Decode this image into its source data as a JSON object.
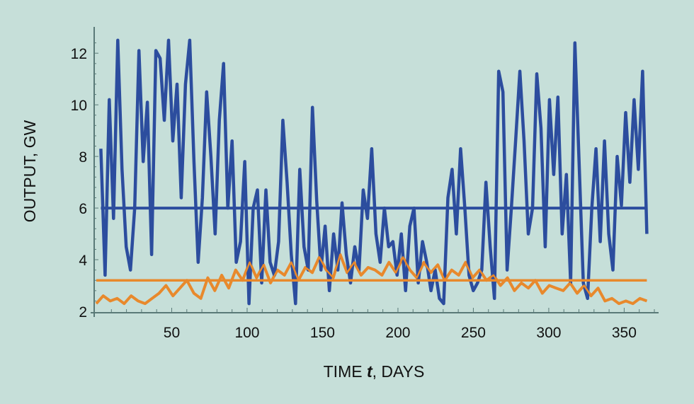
{
  "chart_data": {
    "type": "line",
    "title": "",
    "xlabel_parts": [
      "TIME ",
      "t",
      ", DAYS"
    ],
    "ylabel": "OUTPUT, GW",
    "xlim": [
      0,
      370
    ],
    "ylim": [
      2,
      12.8
    ],
    "xticks": [
      50,
      100,
      150,
      200,
      250,
      300,
      350
    ],
    "yticks": [
      2,
      4,
      6,
      8,
      10,
      12
    ],
    "grid": false,
    "colors": {
      "background": "#c6dfd9",
      "blue": "#2c4d9e",
      "orange": "#e8892c",
      "axis": "#5a7a78"
    },
    "series": [
      {
        "name": "blue-output",
        "x_range": [
          3,
          365
        ],
        "values": [
          8.3,
          3.4,
          10.2,
          5.6,
          12.5,
          7.5,
          4.5,
          3.6,
          6,
          12.1,
          7.8,
          10.1,
          4.2,
          12.1,
          11.8,
          9.4,
          12.5,
          8.6,
          10.8,
          6.4,
          10.8,
          12.5,
          7.8,
          3.9,
          6.4,
          10.5,
          8,
          5,
          9.4,
          11.6,
          6,
          8.6,
          3.9,
          4.7,
          7.8,
          2.3,
          6,
          6.7,
          3.1,
          6.7,
          3.9,
          3.4,
          4.7,
          9.4,
          7,
          4.2,
          2.3,
          7.5,
          4.5,
          3.6,
          9.9,
          6.3,
          3.6,
          5.3,
          2.8,
          5,
          3.6,
          6.2,
          4.2,
          3.1,
          4.5,
          3.6,
          6.7,
          5.6,
          8.3,
          5,
          3.9,
          6,
          4.5,
          4.7,
          3.4,
          5,
          2.8,
          5.3,
          6,
          3.1,
          4.7,
          3.9,
          2.8,
          3.6,
          2.5,
          2.3,
          6.4,
          7.5,
          5,
          8.3,
          6,
          3.4,
          2.8,
          3.1,
          3.6,
          7,
          4.5,
          2.5,
          11.3,
          10.5,
          3.6,
          6,
          8.6,
          11.3,
          8.6,
          5,
          6,
          11.2,
          9.1,
          4.5,
          10.2,
          7.3,
          10.3,
          5,
          7.3,
          3.1,
          12.4,
          7.8,
          3.1,
          2.5,
          6,
          8.3,
          4.7,
          8.6,
          5,
          3.6,
          8,
          6.1,
          9.7,
          7,
          10.2,
          7.5,
          11.3,
          5
        ]
      },
      {
        "name": "orange-output",
        "x_range": [
          0,
          365
        ],
        "values": [
          2.3,
          2.6,
          2.4,
          2.5,
          2.3,
          2.6,
          2.4,
          2.3,
          2.5,
          2.7,
          3.0,
          2.6,
          2.9,
          3.2,
          2.7,
          2.5,
          3.3,
          2.8,
          3.4,
          2.9,
          3.6,
          3.2,
          3.9,
          3.3,
          3.8,
          3.1,
          3.6,
          3.4,
          3.9,
          3.2,
          3.7,
          3.5,
          4.1,
          3.6,
          3.3,
          4.2,
          3.5,
          3.9,
          3.4,
          3.7,
          3.6,
          3.4,
          3.9,
          3.5,
          4.1,
          3.6,
          3.3,
          3.9,
          3.5,
          3.8,
          3.2,
          3.6,
          3.4,
          3.9,
          3.3,
          3.6,
          3.2,
          3.4,
          3.0,
          3.3,
          2.8,
          3.1,
          2.9,
          3.2,
          2.7,
          3.0,
          2.9,
          2.8,
          3.1,
          2.7,
          3.0,
          2.6,
          2.9,
          2.4,
          2.5,
          2.3,
          2.4,
          2.3,
          2.5,
          2.4
        ]
      },
      {
        "name": "blue-average",
        "x_range": [
          3,
          365
        ],
        "values": [
          6,
          6
        ]
      },
      {
        "name": "orange-average",
        "x_range": [
          0,
          365
        ],
        "values": [
          3.2,
          3.2
        ]
      }
    ]
  }
}
